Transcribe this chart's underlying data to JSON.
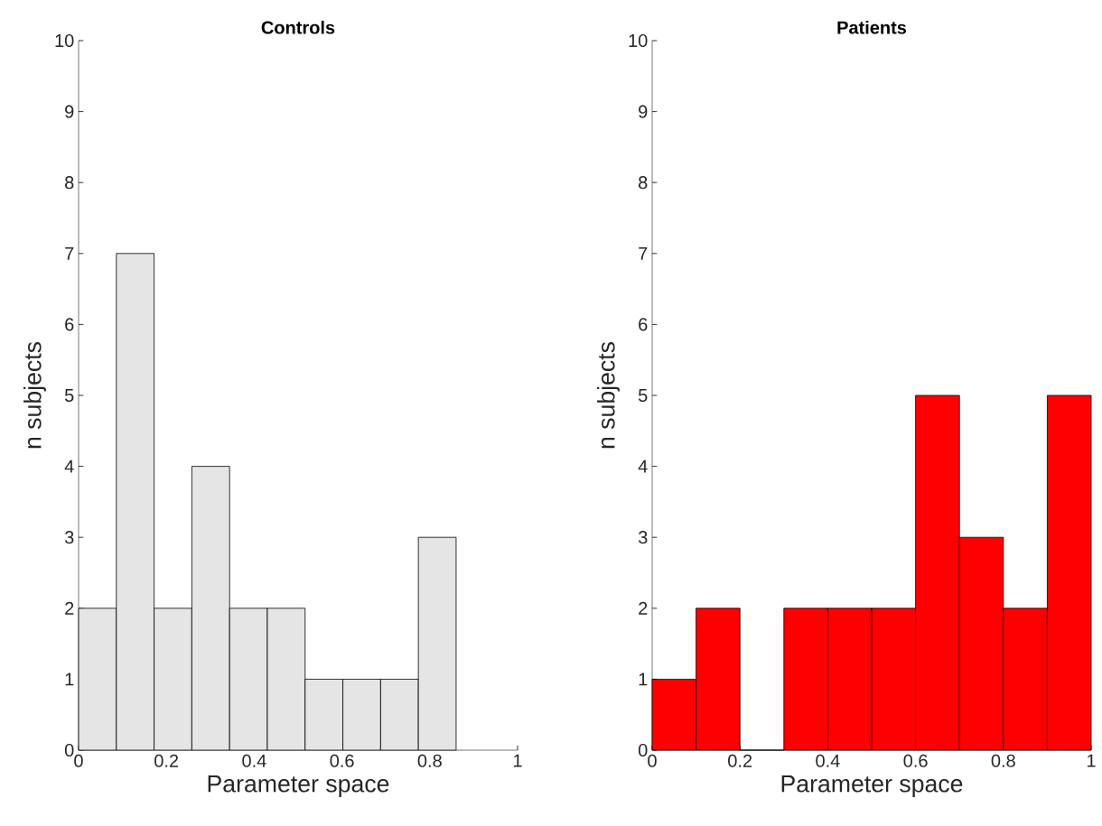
{
  "chart_data": [
    {
      "type": "histogram",
      "title": "Controls",
      "xlabel": "Parameter space",
      "ylabel": "n subjects",
      "color": "#e5e5e5",
      "bins": [
        0,
        0.086,
        0.172,
        0.258,
        0.344,
        0.43,
        0.516,
        0.602,
        0.688,
        0.774,
        0.86
      ],
      "values": [
        2,
        7,
        2,
        4,
        2,
        2,
        1,
        1,
        1,
        3
      ],
      "xlim": [
        0,
        1
      ],
      "ylim": [
        0,
        10
      ],
      "xticks": [
        0,
        0.2,
        0.4,
        0.6,
        0.8,
        1
      ],
      "yticks": [
        0,
        1,
        2,
        3,
        4,
        5,
        6,
        7,
        8,
        9,
        10
      ],
      "grid": false
    },
    {
      "type": "histogram",
      "title": "Patients",
      "xlabel": "Parameter space",
      "ylabel": "n subjects",
      "color": "#ff0000",
      "bins": [
        0,
        0.1,
        0.2,
        0.3,
        0.4,
        0.5,
        0.6,
        0.7,
        0.8,
        0.9,
        1
      ],
      "values": [
        1,
        2,
        0,
        2,
        2,
        2,
        5,
        3,
        2,
        5
      ],
      "xlim": [
        0,
        1
      ],
      "ylim": [
        0,
        10
      ],
      "xticks": [
        0,
        0.2,
        0.4,
        0.6,
        0.8,
        1
      ],
      "yticks": [
        0,
        1,
        2,
        3,
        4,
        5,
        6,
        7,
        8,
        9,
        10
      ],
      "grid": false
    }
  ]
}
